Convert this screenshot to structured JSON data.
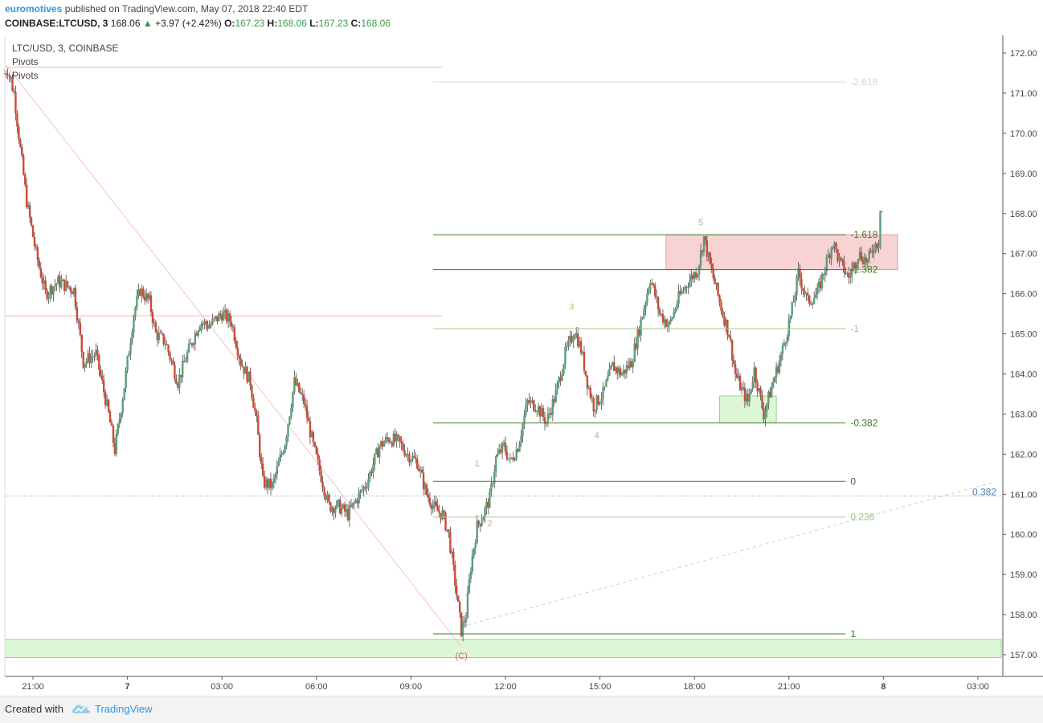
{
  "header": {
    "author": "euromotives",
    "published_text": "published on TradingView.com, May 07, 2018 22:40 EDT",
    "symbol": "COINBASE:LTCUSD, 3",
    "last": "168.06",
    "change": "+3.97 (+2.42%)",
    "o_label": "O:",
    "o_value": "167.23",
    "h_label": "H:",
    "h_value": "168.06",
    "l_label": "L:",
    "l_value": "167.23",
    "c_label": "C:",
    "c_value": "168.06",
    "up_arrow": "▲"
  },
  "legend": {
    "title": "LTC/USD, 3, COINBASE",
    "indicator1": "Pivots",
    "indicator2": "Pivots"
  },
  "footer": {
    "created_with": "Created with",
    "brand": "TradingView",
    "brand_icon": "tradingview-cloud-icon"
  },
  "colors": {
    "up": "#5b9e79",
    "down": "#cc4b37",
    "wick": "#333333",
    "fib_main": "#3c7a26",
    "fib_light": "#a4c98f",
    "fib_faint": "#dfdfd0",
    "pink_zone": "#f8d3d3",
    "green_zone": "#ddf7d6",
    "price_line": "#4c7fb6"
  },
  "chart_data": {
    "type": "candlestick",
    "symbol": "LTC/USD",
    "interval": "3",
    "exchange": "COINBASE",
    "y_axis": {
      "position": "right",
      "min": 156.8,
      "max": 172.3,
      "ticks": [
        "172.00",
        "171.00",
        "170.00",
        "169.00",
        "168.00",
        "167.00",
        "166.00",
        "165.00",
        "164.00",
        "163.00",
        "162.00",
        "161.00",
        "160.00",
        "159.00",
        "158.00",
        "157.00"
      ]
    },
    "x_axis": {
      "ticks": [
        {
          "label": "21:00",
          "hours": 0
        },
        {
          "label": "7",
          "hours": 3
        },
        {
          "label": "03:00",
          "hours": 6
        },
        {
          "label": "06:00",
          "hours": 9
        },
        {
          "label": "09:00",
          "hours": 12
        },
        {
          "label": "12:00",
          "hours": 15
        },
        {
          "label": "15:00",
          "hours": 18
        },
        {
          "label": "18:00",
          "hours": 21
        },
        {
          "label": "21:00",
          "hours": 24
        },
        {
          "label": "8",
          "hours": 27
        },
        {
          "label": "03:00",
          "hours": 30
        }
      ]
    },
    "price_path": [
      [
        -0.9,
        171.5
      ],
      [
        -0.8,
        171.6
      ],
      [
        -0.6,
        171.0
      ],
      [
        -0.4,
        169.6
      ],
      [
        -0.2,
        168.3
      ],
      [
        0.1,
        167.0
      ],
      [
        0.4,
        166.0
      ],
      [
        0.8,
        166.3
      ],
      [
        1.3,
        166.1
      ],
      [
        1.6,
        164.3
      ],
      [
        2.0,
        164.5
      ],
      [
        2.4,
        163.0
      ],
      [
        2.6,
        162.1
      ],
      [
        2.9,
        163.7
      ],
      [
        3.2,
        165.5
      ],
      [
        3.4,
        166.1
      ],
      [
        3.7,
        165.8
      ],
      [
        3.9,
        165.0
      ],
      [
        4.2,
        164.8
      ],
      [
        4.6,
        163.8
      ],
      [
        4.9,
        164.5
      ],
      [
        5.3,
        165.3
      ],
      [
        5.6,
        165.2
      ],
      [
        6.0,
        165.5
      ],
      [
        6.3,
        165.3
      ],
      [
        6.6,
        164.3
      ],
      [
        6.9,
        163.8
      ],
      [
        7.1,
        162.8
      ],
      [
        7.3,
        161.3
      ],
      [
        7.6,
        161.2
      ],
      [
        8.0,
        162.3
      ],
      [
        8.3,
        163.8
      ],
      [
        8.6,
        163.3
      ],
      [
        8.9,
        162.2
      ],
      [
        9.2,
        161.3
      ],
      [
        9.4,
        160.7
      ],
      [
        9.7,
        160.7
      ],
      [
        10.0,
        160.5
      ],
      [
        10.3,
        160.9
      ],
      [
        10.6,
        161.3
      ],
      [
        11.0,
        162.2
      ],
      [
        11.3,
        162.4
      ],
      [
        11.6,
        162.3
      ],
      [
        11.9,
        162.0
      ],
      [
        12.2,
        161.8
      ],
      [
        12.5,
        161.0
      ],
      [
        12.8,
        160.6
      ],
      [
        13.0,
        160.5
      ],
      [
        13.2,
        160.0
      ],
      [
        13.4,
        158.8
      ],
      [
        13.6,
        157.6
      ],
      [
        13.75,
        158.0
      ],
      [
        13.9,
        159.2
      ],
      [
        14.1,
        160.2
      ],
      [
        14.3,
        160.5
      ],
      [
        14.5,
        160.9
      ],
      [
        14.7,
        161.9
      ],
      [
        14.95,
        162.2
      ],
      [
        15.15,
        161.8
      ],
      [
        15.4,
        162.2
      ],
      [
        15.7,
        163.3
      ],
      [
        16.0,
        163.2
      ],
      [
        16.3,
        162.8
      ],
      [
        16.6,
        163.5
      ],
      [
        16.9,
        164.5
      ],
      [
        17.2,
        165.1
      ],
      [
        17.4,
        164.6
      ],
      [
        17.6,
        163.8
      ],
      [
        17.8,
        163.2
      ],
      [
        18.1,
        163.5
      ],
      [
        18.4,
        164.2
      ],
      [
        18.7,
        164.0
      ],
      [
        19.0,
        164.3
      ],
      [
        19.3,
        165.3
      ],
      [
        19.6,
        166.4
      ],
      [
        19.9,
        165.5
      ],
      [
        20.2,
        165.2
      ],
      [
        20.5,
        165.9
      ],
      [
        20.8,
        166.3
      ],
      [
        21.1,
        166.6
      ],
      [
        21.3,
        167.4
      ],
      [
        21.5,
        166.7
      ],
      [
        21.7,
        166.1
      ],
      [
        21.9,
        165.5
      ],
      [
        22.1,
        165.0
      ],
      [
        22.3,
        164.0
      ],
      [
        22.5,
        163.6
      ],
      [
        22.7,
        163.3
      ],
      [
        22.9,
        164.1
      ],
      [
        23.2,
        163.0
      ],
      [
        23.5,
        163.8
      ],
      [
        23.8,
        164.6
      ],
      [
        24.1,
        165.6
      ],
      [
        24.3,
        166.5
      ],
      [
        24.6,
        165.8
      ],
      [
        24.9,
        166.0
      ],
      [
        25.2,
        166.8
      ],
      [
        25.4,
        167.3
      ],
      [
        25.6,
        166.8
      ],
      [
        25.9,
        166.4
      ],
      [
        26.2,
        167.0
      ],
      [
        26.5,
        166.8
      ],
      [
        26.7,
        167.2
      ],
      [
        26.85,
        167.3
      ],
      [
        26.95,
        168.06
      ]
    ],
    "fib_levels": [
      {
        "label": "-2.618",
        "price": 171.28,
        "style": "faint"
      },
      {
        "label": "-1.618",
        "price": 167.47,
        "style": "main"
      },
      {
        "label": "-1.382",
        "price": 166.6,
        "style": "main"
      },
      {
        "label": "-1",
        "price": 165.13,
        "style": "light"
      },
      {
        "label": "-0.382",
        "price": 162.78,
        "style": "main"
      },
      {
        "label": "0",
        "price": 161.32,
        "style": "main"
      },
      {
        "label": "0.236",
        "price": 160.43,
        "style": "light"
      },
      {
        "label": "1",
        "price": 157.52,
        "style": "main"
      }
    ],
    "fib_start_hours": 12.7,
    "fib_end_hours": 25.8,
    "pivot_lines": [
      {
        "price": 171.65,
        "from_hours": -1.0,
        "to_hours": 13.0
      },
      {
        "price": 165.45,
        "from_hours": -1.0,
        "to_hours": 13.0
      }
    ],
    "wave_labels": [
      {
        "text": "1",
        "hours": 14.1,
        "price": 161.7
      },
      {
        "text": "2",
        "hours": 14.5,
        "price": 160.2
      },
      {
        "text": "3",
        "hours": 17.1,
        "price": 165.6
      },
      {
        "text": "4",
        "hours": 17.9,
        "price": 162.4
      },
      {
        "text": "5",
        "hours": 21.2,
        "price": 167.7
      },
      {
        "text": "(C)",
        "hours": 13.6,
        "price": 156.9
      }
    ],
    "zones": [
      {
        "name": "resistance-zone",
        "from_hours": 20.1,
        "to_hours": 27.45,
        "price_top": 167.47,
        "price_bottom": 166.6,
        "color": "pink"
      },
      {
        "name": "support-zone",
        "from_hours": 21.8,
        "to_hours": 23.6,
        "price_top": 163.45,
        "price_bottom": 162.78,
        "color": "green"
      },
      {
        "name": "bottom-zone",
        "from_hours": -1.0,
        "to_hours": 30.8,
        "price_top": 157.38,
        "price_bottom": 156.93,
        "color": "green"
      }
    ],
    "trend_lines": [
      {
        "from": [
          -0.85,
          171.7
        ],
        "to": [
          13.6,
          157.2
        ],
        "style": "solid-pink"
      },
      {
        "from": [
          13.6,
          157.7
        ],
        "to": [
          30.5,
          161.3
        ],
        "style": "dashed-grey"
      }
    ],
    "price_line": {
      "price": 160.96,
      "label": "0.382"
    }
  }
}
